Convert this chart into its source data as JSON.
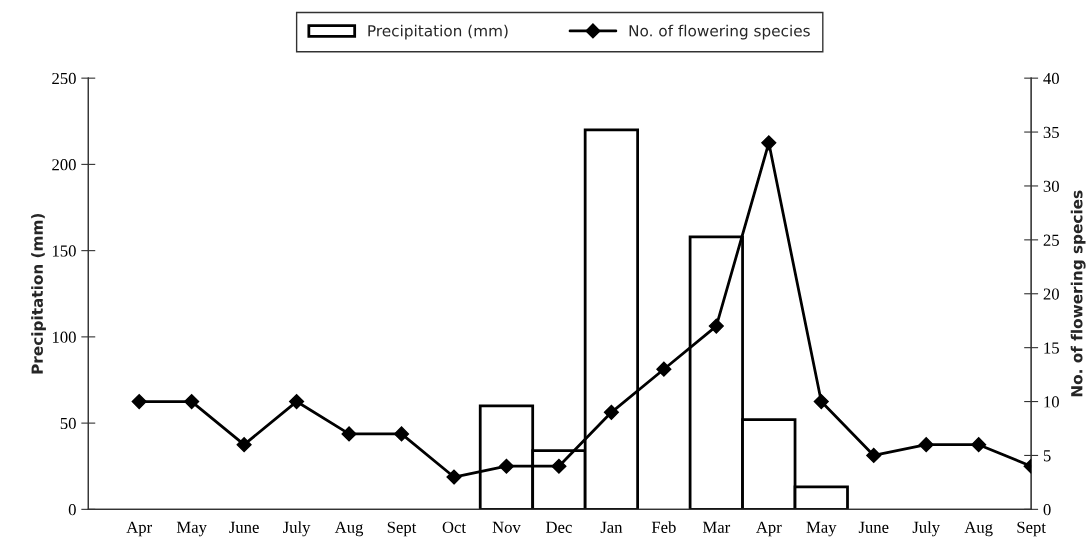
{
  "chart_data": {
    "type": "bar",
    "categories": [
      "Apr",
      "May",
      "June",
      "July",
      "Aug",
      "Sept",
      "Oct",
      "Nov",
      "Dec",
      "Jan",
      "Feb",
      "Mar",
      "Apr",
      "May",
      "June",
      "July",
      "Aug",
      "Sept"
    ],
    "series": [
      {
        "name": "Precipitation (mm)",
        "color": "#ffffff",
        "values": [
          null,
          null,
          null,
          null,
          null,
          null,
          null,
          60,
          34,
          220,
          null,
          158,
          52,
          13,
          null,
          null,
          null,
          null
        ]
      },
      {
        "name": "No. of flowering species",
        "type": "line",
        "axis": "y2",
        "color": "#000000",
        "values": [
          10,
          10,
          6,
          10,
          7,
          7,
          3,
          4,
          4,
          9,
          13,
          17,
          34,
          10,
          5,
          6,
          6,
          4
        ]
      }
    ],
    "ylabel": "Precipitation (mm)",
    "y2label": "No. of flowering species",
    "ylim": [
      0,
      250
    ],
    "yticks": [
      0,
      50,
      100,
      150,
      200,
      250
    ],
    "y2lim": [
      0,
      40
    ],
    "y2ticks": [
      0,
      5,
      10,
      15,
      20,
      25,
      30,
      35,
      40
    ],
    "grid": false,
    "legend": "top",
    "marker": "diamond",
    "line_style": "solid"
  }
}
